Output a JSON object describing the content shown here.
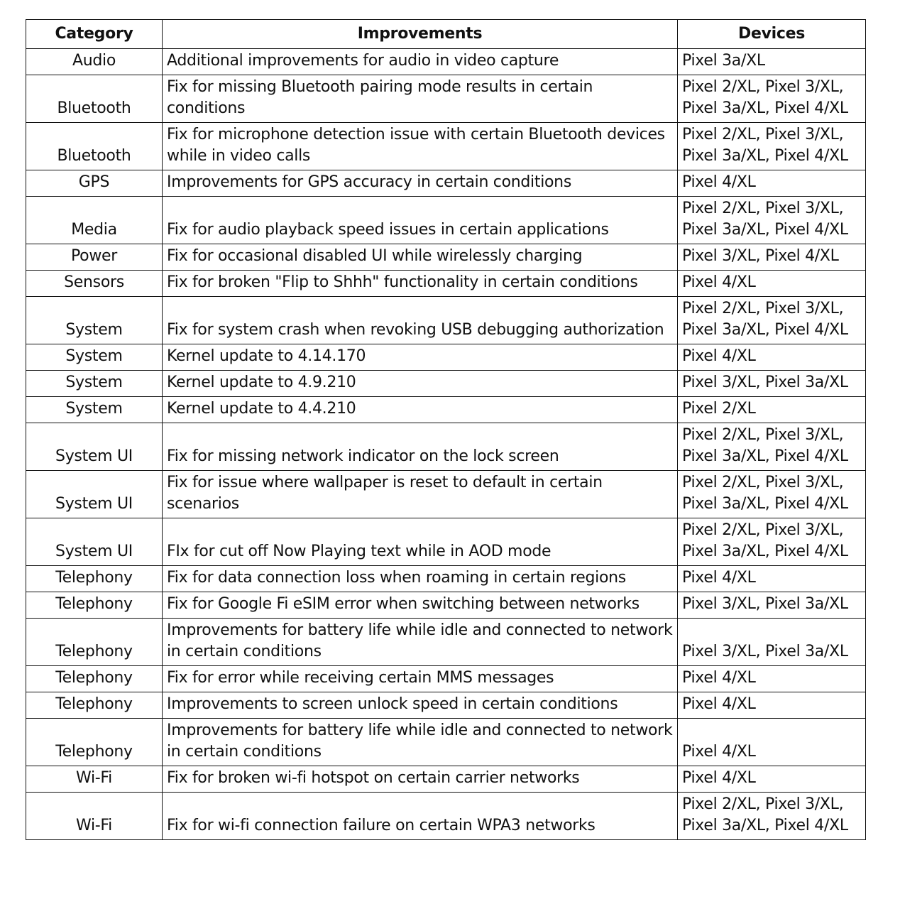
{
  "table": {
    "headers": [
      "Category",
      "Improvements",
      "Devices"
    ],
    "rows": [
      {
        "category": "Audio",
        "improvement": "Additional improvements for audio in video capture",
        "devices": "Pixel 3a/XL",
        "lines": 1
      },
      {
        "category": "Bluetooth",
        "improvement": "Fix for missing Bluetooth pairing mode results in certain conditions",
        "devices": "Pixel 2/XL, Pixel 3/XL, Pixel 3a/XL, Pixel 4/XL",
        "lines": 2
      },
      {
        "category": "Bluetooth",
        "improvement": "Fix for microphone detection issue with certain Bluetooth devices while in video calls",
        "devices": "Pixel 2/XL, Pixel 3/XL, Pixel 3a/XL, Pixel 4/XL",
        "lines": 2
      },
      {
        "category": "GPS",
        "improvement": "Improvements for GPS accuracy in certain conditions",
        "devices": "Pixel 4/XL",
        "lines": 1
      },
      {
        "category": "Media",
        "improvement": "Fix for audio playback speed issues in certain applications",
        "devices": "Pixel 2/XL, Pixel 3/XL, Pixel 3a/XL, Pixel 4/XL",
        "lines": 2
      },
      {
        "category": "Power",
        "improvement": "Fix for occasional disabled UI while wirelessly charging",
        "devices": "Pixel 3/XL, Pixel 4/XL",
        "lines": 1
      },
      {
        "category": "Sensors",
        "improvement": "Fix for broken \"Flip to Shhh\" functionality in certain conditions",
        "devices": "Pixel 4/XL",
        "lines": 1
      },
      {
        "category": "System",
        "improvement": "Fix for system crash when revoking USB debugging authorization",
        "devices": "Pixel 2/XL, Pixel 3/XL, Pixel 3a/XL, Pixel 4/XL",
        "lines": 2
      },
      {
        "category": "System",
        "improvement": "Kernel update to 4.14.170",
        "devices": "Pixel 4/XL",
        "lines": 1
      },
      {
        "category": "System",
        "improvement": "Kernel update to 4.9.210",
        "devices": "Pixel 3/XL, Pixel 3a/XL",
        "lines": 1
      },
      {
        "category": "System",
        "improvement": "Kernel update to 4.4.210",
        "devices": "Pixel 2/XL",
        "lines": 1
      },
      {
        "category": "System UI",
        "improvement": "Fix for missing network indicator on the lock screen",
        "devices": "Pixel 2/XL, Pixel 3/XL, Pixel 3a/XL, Pixel 4/XL",
        "lines": 2
      },
      {
        "category": "System UI",
        "improvement": "Fix for issue where wallpaper is reset to default in certain scenarios",
        "devices": "Pixel 2/XL, Pixel 3/XL, Pixel 3a/XL, Pixel 4/XL",
        "lines": 2
      },
      {
        "category": "System UI",
        "improvement": "FIx for cut off Now Playing text while in AOD mode",
        "devices": "Pixel 2/XL, Pixel 3/XL, Pixel 3a/XL, Pixel 4/XL",
        "lines": 2
      },
      {
        "category": "Telephony",
        "improvement": "Fix for data connection loss when roaming in certain regions",
        "devices": "Pixel 4/XL",
        "lines": 1
      },
      {
        "category": "Telephony",
        "improvement": "Fix for Google Fi eSIM error when switching between networks",
        "devices": "Pixel 3/XL, Pixel 3a/XL",
        "lines": 1
      },
      {
        "category": "Telephony",
        "improvement": "Improvements for battery life while idle and connected to network in certain conditions",
        "devices": "Pixel 3/XL, Pixel 3a/XL",
        "lines": 2
      },
      {
        "category": "Telephony",
        "improvement": "Fix for error while receiving certain MMS messages",
        "devices": "Pixel 4/XL",
        "lines": 1
      },
      {
        "category": "Telephony",
        "improvement": "Improvements to screen unlock speed in certain conditions",
        "devices": "Pixel 4/XL",
        "lines": 1
      },
      {
        "category": "Telephony",
        "improvement": "Improvements for battery life while idle and connected to network in certain conditions",
        "devices": "Pixel 4/XL",
        "lines": 2
      },
      {
        "category": "Wi-Fi",
        "improvement": "Fix for broken wi-fi hotspot on certain carrier networks",
        "devices": "Pixel 4/XL",
        "lines": 1
      },
      {
        "category": "Wi-Fi",
        "improvement": "Fix for wi-fi connection failure on certain WPA3 networks",
        "devices": "Pixel 2/XL, Pixel 3/XL, Pixel 3a/XL, Pixel 4/XL",
        "lines": 2
      }
    ]
  }
}
